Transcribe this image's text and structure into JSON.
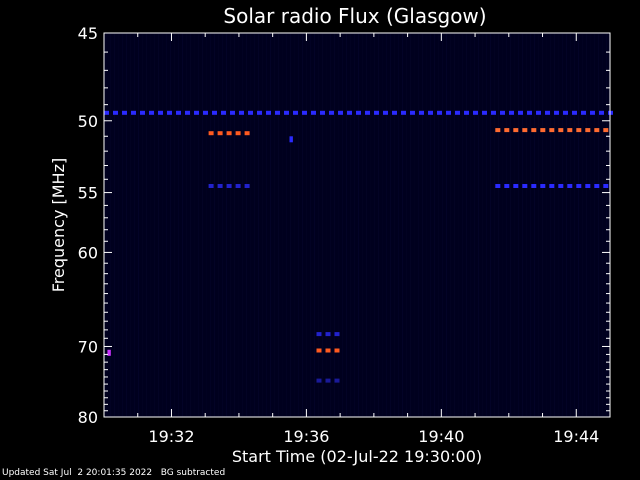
{
  "chart_data": {
    "type": "heatmap",
    "title": "Solar radio Flux (Glasgow)",
    "xlabel": "Start Time (02-Jul-22 19:30:00)",
    "ylabel": "Frequency [MHz]",
    "x_range_minutes": [
      0,
      15
    ],
    "y_range_mhz": [
      45,
      80
    ],
    "x_ticks": [
      {
        "label": "19:32",
        "min": 2
      },
      {
        "label": "19:36",
        "min": 6
      },
      {
        "label": "19:40",
        "min": 10
      },
      {
        "label": "19:44",
        "min": 14
      }
    ],
    "y_ticks": [
      45,
      50,
      55,
      60,
      70,
      80
    ],
    "y_tick_labels": [
      "45",
      "50",
      "55",
      "60",
      "70",
      "80"
    ],
    "background_color": "#00001e",
    "features": [
      {
        "desc": "persistent band",
        "freq": 49.5,
        "t0": 0,
        "t1": 15,
        "color": "#2a2aff",
        "dash": true
      },
      {
        "desc": "burst",
        "freq": 50.8,
        "t0": 3.1,
        "t1": 4.2,
        "color": "#ff5a20",
        "dash": true
      },
      {
        "desc": "burst",
        "freq": 54.5,
        "t0": 3.1,
        "t1": 4.2,
        "color": "#2222cc",
        "dash": true
      },
      {
        "desc": "spot",
        "freq": 51.2,
        "t0": 5.5,
        "t1": 5.6,
        "color": "#2a2aff",
        "dash": false
      },
      {
        "desc": "burst",
        "freq": 50.6,
        "t0": 11.6,
        "t1": 15,
        "color": "#ff6a30",
        "dash": true
      },
      {
        "desc": "burst",
        "freq": 54.5,
        "t0": 11.6,
        "t1": 15,
        "color": "#2a2aff",
        "dash": true
      },
      {
        "desc": "burst",
        "freq": 70.5,
        "t0": 6.3,
        "t1": 7.0,
        "color": "#ff5a20",
        "dash": true
      },
      {
        "desc": "burst",
        "freq": 68.5,
        "t0": 6.3,
        "t1": 7.0,
        "color": "#2222cc",
        "dash": true
      },
      {
        "desc": "burst",
        "freq": 74.5,
        "t0": 6.3,
        "t1": 7.0,
        "color": "#1a1a99",
        "dash": true
      },
      {
        "desc": "spot",
        "freq": 70.8,
        "t0": 0.1,
        "t1": 0.2,
        "color": "#cc33ff",
        "dash": false
      }
    ]
  },
  "footer": {
    "updated": "Updated Sat Jul  2 20:01:35 2022",
    "note": "BG subtracted"
  }
}
